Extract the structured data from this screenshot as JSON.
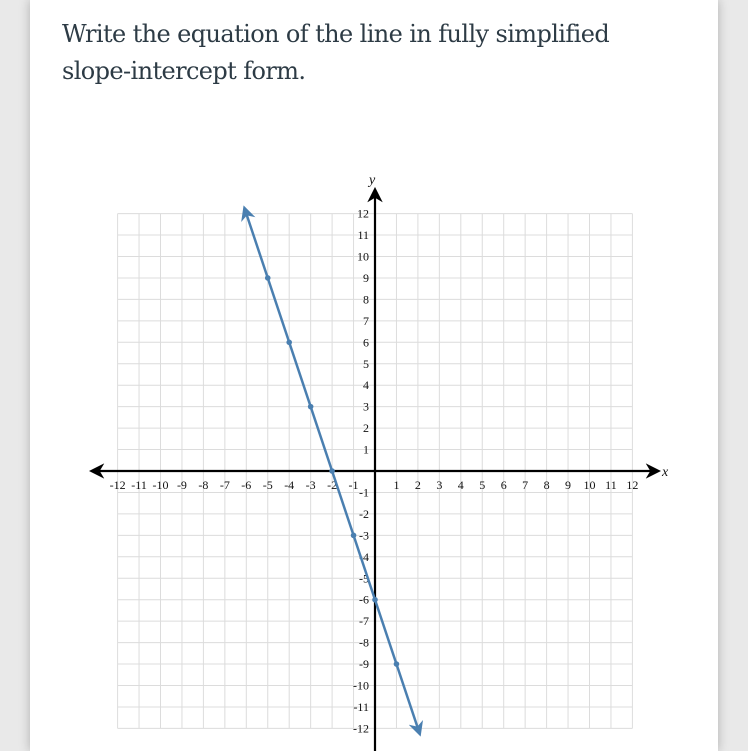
{
  "question": "Write the equation of the line in fully simplified slope-intercept form.",
  "chart_data": {
    "type": "line",
    "xlabel": "x",
    "ylabel": "y",
    "xlim": [
      -12,
      12
    ],
    "ylim": [
      -12,
      12
    ],
    "grid": true,
    "xticks": [
      -12,
      -11,
      -10,
      -9,
      -8,
      -7,
      -6,
      -5,
      -4,
      -3,
      -2,
      -1,
      1,
      2,
      3,
      4,
      5,
      6,
      7,
      8,
      9,
      10,
      11,
      12
    ],
    "yticks": [
      -12,
      -11,
      -10,
      -9,
      -8,
      -7,
      -6,
      -5,
      -4,
      -3,
      -2,
      -1,
      1,
      2,
      3,
      4,
      5,
      6,
      7,
      8,
      9,
      10,
      11,
      12
    ],
    "series": [
      {
        "points": [
          [
            -5,
            9
          ],
          [
            -4,
            6
          ],
          [
            -3,
            3
          ],
          [
            -2,
            0
          ],
          [
            -1,
            -3
          ],
          [
            0,
            -6
          ],
          [
            1,
            -9
          ]
        ],
        "color": "#4a7fb0",
        "arrows_both_ends": true
      }
    ]
  }
}
